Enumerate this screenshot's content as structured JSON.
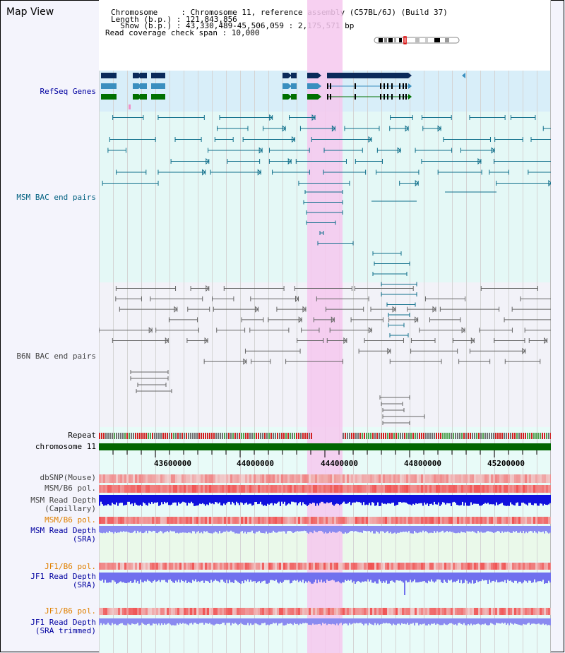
{
  "window": {
    "title": "Map View"
  },
  "info": {
    "chromosome_line": "Chromosome     : Chromosome 11, reference assembly (C57BL/6J) (Build 37)",
    "length_line": "Length (b.p.) : 121,843,856",
    "show_line": "  Show (b.p.) : 43,330,489-45,506,059 : 2,175,571 bp",
    "coverage_line": "Read coverage check span : 10,000"
  },
  "tracks": {
    "refseq": "RefSeq Genes",
    "msm_bac": "MSM BAC end pairs",
    "b6n_bac": "B6N BAC end pairs",
    "repeat": "Repeat",
    "chromosome": "chromosome 11",
    "dbsnp": "dbSNP(Mouse)",
    "msm_b6_pol": "MSM/B6 pol.",
    "msm_depth_cap": "MSM Read Depth\n(Capillary)",
    "msm_b6_pol2": "MSM/B6 pol.",
    "msm_depth_sra": "MSM Read Depth\n(SRA)",
    "jf1_b6_pol": "JF1/B6 pol.",
    "jf1_depth_sra": "JF1 Read Depth\n(SRA)",
    "jf1_b6_pol2": "JF1/B6 pol.",
    "jf1_depth_trim": "JF1 Read Depth\n(SRA trimmed)"
  },
  "axis": {
    "ticks": [
      "43600000",
      "44000000",
      "44400000",
      "44800000",
      "45200000"
    ]
  },
  "colors": {
    "refseq_dark": "#0a2a5a",
    "refseq_mid": "#3a8fbf",
    "refseq_green": "#007000",
    "highlight": "#f6c8ee",
    "msm": "#0e6e8a",
    "b6n": "#666666",
    "chrom": "#006600"
  }
}
